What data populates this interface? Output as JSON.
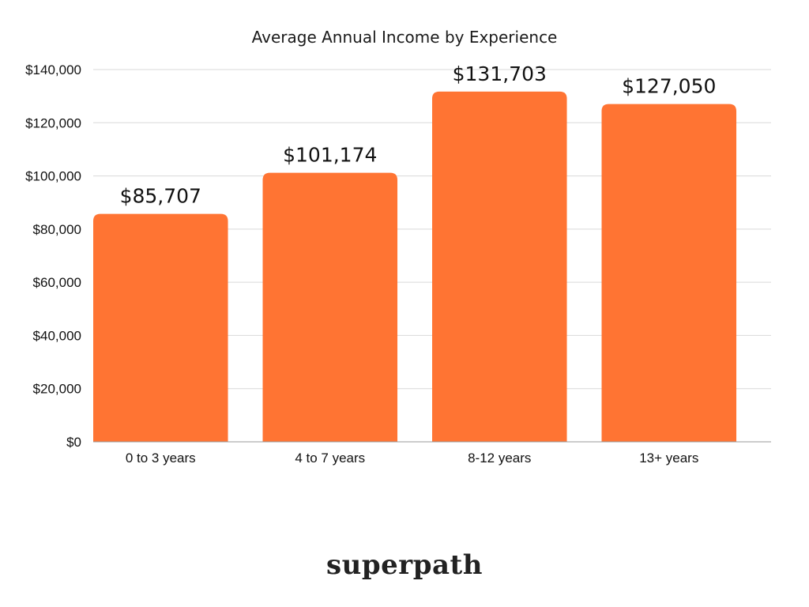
{
  "chart_data": {
    "type": "bar",
    "title": "Average Annual Income by Experience",
    "xlabel": "",
    "ylabel": "",
    "categories": [
      "0 to 3 years",
      "4 to 7 years",
      "8-12 years",
      "13+ years"
    ],
    "values": [
      85707,
      101174,
      131703,
      127050
    ],
    "value_labels": [
      "$85,707",
      "$101,174",
      "$131,703",
      "$127,050"
    ],
    "ylim": [
      0,
      140000
    ],
    "y_ticks": [
      0,
      20000,
      40000,
      60000,
      80000,
      100000,
      120000,
      140000
    ],
    "y_tick_labels": [
      "$0",
      "$20,000",
      "$40,000",
      "$60,000",
      "$80,000",
      "$100,000",
      "$120,000",
      "$140,000"
    ],
    "grid": true,
    "legend": "none",
    "bar_color": "#FF7433",
    "grid_color": "#d9d9d9",
    "axis_color": "#999999"
  },
  "brand": {
    "logo_text": "superpath"
  }
}
